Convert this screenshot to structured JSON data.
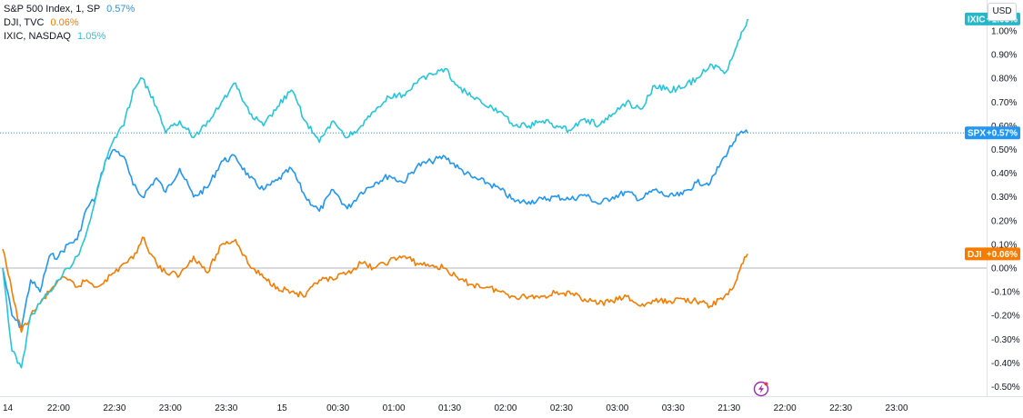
{
  "currency": "USD",
  "legend": [
    {
      "name": "S&P 500 Index, 1, SP",
      "value": "0.57%",
      "color": "#2196f3"
    },
    {
      "name": "DJI, TVC",
      "value": "0.06%",
      "color": "#f57c00"
    },
    {
      "name": "IXIC, NASDAQ",
      "value": "1.05%",
      "color": "#26c6da"
    }
  ],
  "badges": [
    {
      "label": "IXIC",
      "value": "+1.05%",
      "color": "#26b8c8"
    },
    {
      "label": "SPX",
      "value": "+0.57%",
      "color": "#2196f3"
    },
    {
      "label": "DJI",
      "value": "+0.06%",
      "color": "#f57c00"
    }
  ],
  "chart_data": {
    "type": "line",
    "y_unit": "%",
    "ylim": [
      -0.54,
      1.13
    ],
    "y_ticks": [
      "1.10%",
      "1.00%",
      "0.90%",
      "0.80%",
      "0.70%",
      "0.60%",
      "0.50%",
      "0.40%",
      "0.30%",
      "0.20%",
      "0.10%",
      "0.00%",
      "-0.10%",
      "-0.20%",
      "-0.30%",
      "-0.40%",
      "-0.50%"
    ],
    "y_tick_values": [
      1.1,
      1.0,
      0.9,
      0.8,
      0.7,
      0.6,
      0.5,
      0.4,
      0.3,
      0.2,
      0.1,
      0.0,
      -0.1,
      -0.2,
      -0.3,
      -0.4,
      -0.5
    ],
    "x_ticks": [
      "14",
      "22:00",
      "22:30",
      "23:00",
      "23:30",
      "15",
      "00:30",
      "01:00",
      "01:30",
      "02:00",
      "02:30",
      "03:00",
      "03:30",
      "21:30",
      "22:00",
      "22:30",
      "23:00"
    ],
    "x_tick_index": [
      0,
      12,
      24,
      36,
      48,
      60,
      72,
      84,
      96,
      108,
      120,
      132,
      144,
      156,
      168,
      180,
      192
    ],
    "x_max_index": 204,
    "grid": false,
    "legend_position": "top-left",
    "series": [
      {
        "name": "S&P 500 Index, 1, SP",
        "color": "#2196f3",
        "x": [
          0,
          2,
          4,
          6,
          8,
          10,
          12,
          14,
          16,
          18,
          20,
          22,
          24,
          26,
          28,
          30,
          33,
          35,
          38,
          41,
          44,
          47,
          50,
          53,
          56,
          59,
          62,
          65,
          68,
          71,
          74,
          77,
          80,
          83,
          86,
          89,
          92,
          95,
          98,
          101,
          104,
          107,
          110,
          113,
          116,
          119,
          122,
          125,
          128,
          131,
          134,
          137,
          140,
          143,
          146,
          149,
          152,
          155,
          157,
          158,
          159,
          160
        ],
        "y": [
          0.0,
          -0.2,
          -0.25,
          -0.05,
          -0.1,
          0.05,
          0.05,
          0.1,
          0.12,
          0.25,
          0.3,
          0.45,
          0.5,
          0.47,
          0.35,
          0.3,
          0.38,
          0.32,
          0.42,
          0.3,
          0.34,
          0.45,
          0.47,
          0.38,
          0.33,
          0.37,
          0.42,
          0.3,
          0.24,
          0.33,
          0.25,
          0.32,
          0.36,
          0.39,
          0.36,
          0.43,
          0.45,
          0.47,
          0.42,
          0.38,
          0.36,
          0.33,
          0.28,
          0.28,
          0.29,
          0.3,
          0.29,
          0.31,
          0.27,
          0.3,
          0.32,
          0.29,
          0.33,
          0.3,
          0.31,
          0.36,
          0.36,
          0.47,
          0.53,
          0.56,
          0.57,
          0.57
        ]
      },
      {
        "name": "DJI, TVC",
        "color": "#f57c00",
        "x": [
          0,
          2,
          4,
          6,
          8,
          10,
          12,
          14,
          16,
          18,
          20,
          22,
          24,
          26,
          28,
          30,
          33,
          35,
          38,
          41,
          44,
          47,
          50,
          53,
          56,
          59,
          62,
          65,
          68,
          71,
          74,
          77,
          80,
          83,
          86,
          89,
          92,
          95,
          98,
          101,
          104,
          107,
          110,
          113,
          116,
          119,
          122,
          125,
          128,
          131,
          134,
          137,
          140,
          143,
          146,
          149,
          152,
          155,
          157,
          158,
          159,
          160
        ],
        "y": [
          0.08,
          -0.1,
          -0.27,
          -0.2,
          -0.15,
          -0.1,
          -0.05,
          -0.05,
          -0.08,
          -0.05,
          -0.08,
          -0.05,
          -0.02,
          0.02,
          0.04,
          0.13,
          0.02,
          -0.02,
          -0.03,
          0.05,
          -0.02,
          0.1,
          0.12,
          0.01,
          -0.04,
          -0.08,
          -0.1,
          -0.12,
          -0.05,
          -0.05,
          -0.02,
          0.02,
          0.0,
          0.03,
          0.05,
          0.02,
          0.01,
          0.0,
          -0.05,
          -0.07,
          -0.08,
          -0.1,
          -0.12,
          -0.12,
          -0.12,
          -0.1,
          -0.11,
          -0.13,
          -0.15,
          -0.14,
          -0.12,
          -0.16,
          -0.14,
          -0.14,
          -0.13,
          -0.14,
          -0.16,
          -0.12,
          -0.08,
          -0.02,
          0.02,
          0.06
        ]
      },
      {
        "name": "IXIC, NASDAQ",
        "color": "#26c6da",
        "x": [
          0,
          2,
          4,
          6,
          8,
          10,
          12,
          14,
          16,
          18,
          20,
          22,
          24,
          26,
          28,
          30,
          33,
          35,
          38,
          41,
          44,
          47,
          50,
          53,
          56,
          59,
          62,
          65,
          68,
          71,
          74,
          77,
          80,
          83,
          86,
          89,
          92,
          95,
          98,
          101,
          104,
          107,
          110,
          113,
          116,
          119,
          122,
          125,
          128,
          131,
          134,
          137,
          140,
          143,
          146,
          149,
          152,
          155,
          157,
          158,
          159,
          160
        ],
        "y": [
          0.0,
          -0.35,
          -0.42,
          -0.2,
          -0.15,
          -0.1,
          -0.05,
          0.0,
          0.05,
          0.15,
          0.3,
          0.45,
          0.55,
          0.6,
          0.75,
          0.8,
          0.68,
          0.57,
          0.62,
          0.55,
          0.62,
          0.7,
          0.78,
          0.65,
          0.6,
          0.68,
          0.75,
          0.62,
          0.53,
          0.62,
          0.55,
          0.6,
          0.66,
          0.72,
          0.73,
          0.78,
          0.82,
          0.84,
          0.76,
          0.72,
          0.68,
          0.66,
          0.6,
          0.6,
          0.62,
          0.6,
          0.58,
          0.63,
          0.6,
          0.65,
          0.7,
          0.67,
          0.77,
          0.75,
          0.76,
          0.8,
          0.86,
          0.82,
          0.9,
          0.96,
          1.0,
          1.05
        ]
      }
    ]
  }
}
